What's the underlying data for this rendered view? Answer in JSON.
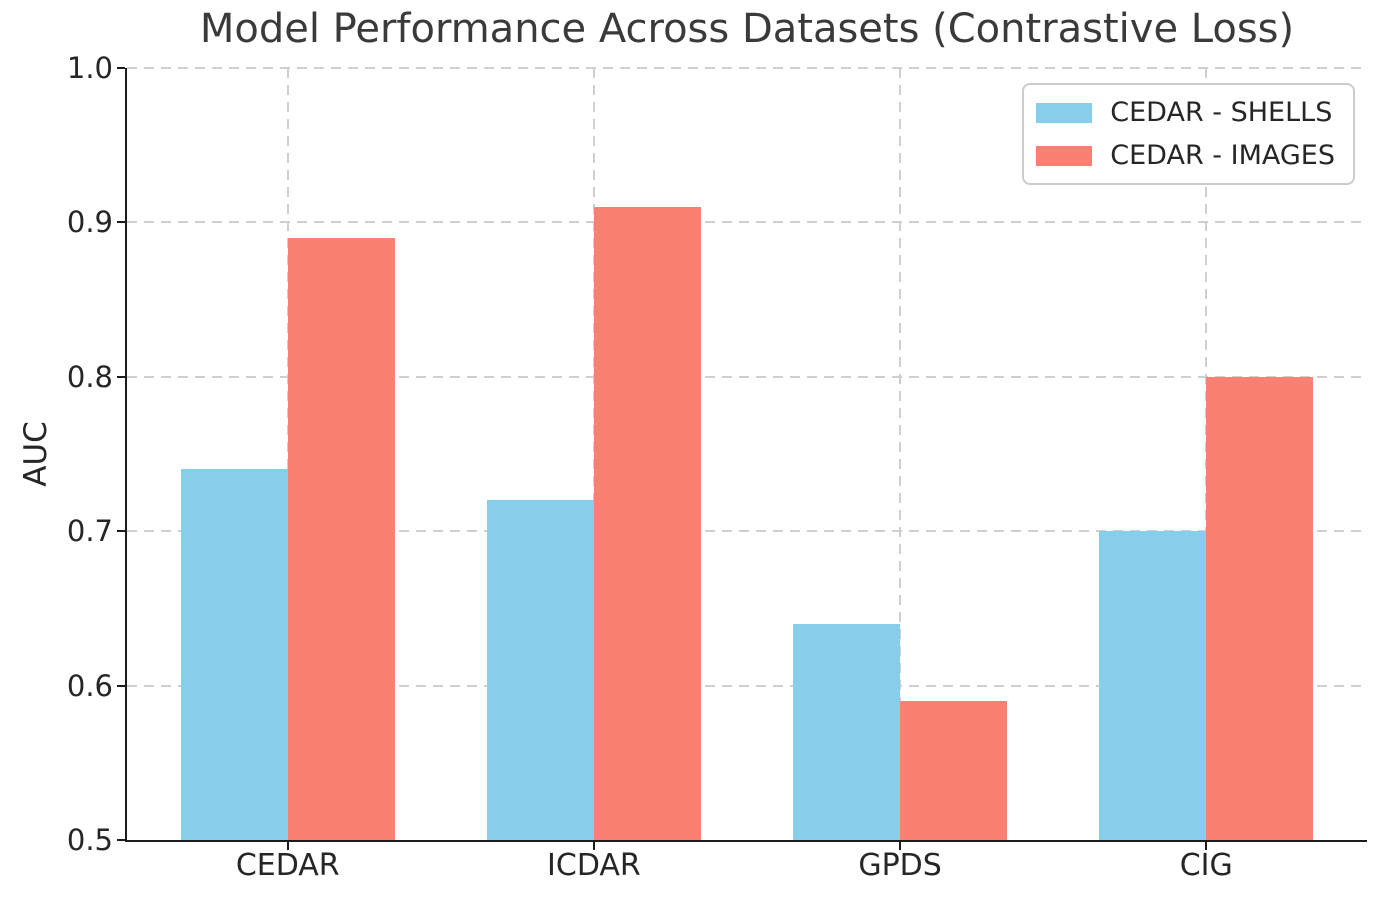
{
  "chart_data": {
    "type": "bar",
    "title": "Model Performance Across Datasets (Contrastive Loss)",
    "xlabel": "",
    "ylabel": "AUC",
    "categories": [
      "CEDAR",
      "ICDAR",
      "GPDS",
      "CIG"
    ],
    "series": [
      {
        "name": "CEDAR - SHELLS",
        "color": "#87CEEB",
        "values": [
          0.74,
          0.72,
          0.64,
          0.7
        ]
      },
      {
        "name": "CEDAR - IMAGES",
        "color": "#FA8072",
        "values": [
          0.89,
          0.91,
          0.59,
          0.8
        ]
      }
    ],
    "ylim": [
      0.5,
      1.0
    ],
    "yticks": [
      "0.5",
      "0.6",
      "0.7",
      "0.8",
      "0.9",
      "1.0"
    ],
    "grid": "dashed, horizontal and vertical, light gray",
    "legend_position": "upper right",
    "colors": {
      "background": "#ffffff",
      "spine": "#1c1c1c",
      "grid": "#cfcfcf",
      "text": "#262626",
      "title": "#3a3a3a"
    }
  }
}
